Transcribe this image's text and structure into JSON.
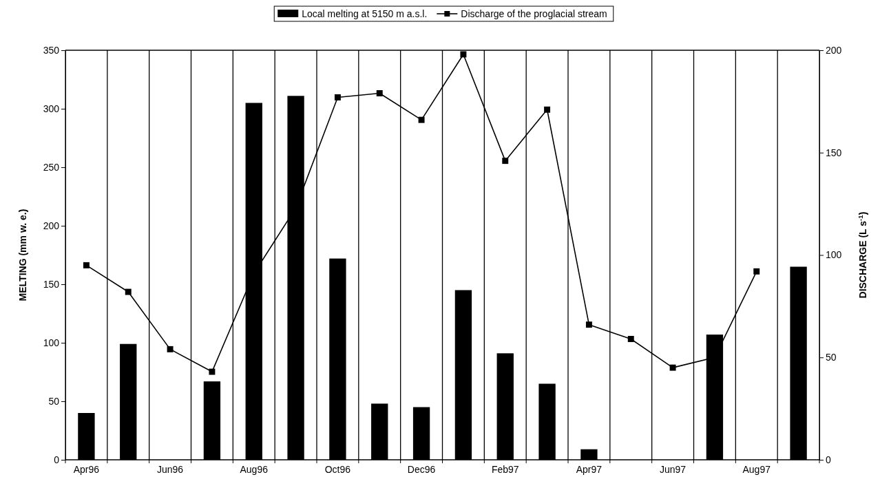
{
  "chart_data": {
    "type": "bar",
    "ylabel": "MELTING (mm w. e.)",
    "y2label": "DISCHARGE (L s$^{-1}$)",
    "categories": [
      "Apr96",
      null,
      "Jun96",
      null,
      "Aug96",
      null,
      "Oct96",
      null,
      "Dec96",
      null,
      "Feb97",
      null,
      "Apr97",
      null,
      "Jun97",
      null,
      "Aug97",
      null
    ],
    "series": [
      {
        "name": "Discharge of the proglacial stream",
        "type": "line",
        "axis": "y2",
        "color": "#000000",
        "marker": "square",
        "values": [
          95,
          82,
          54,
          43,
          91,
          123,
          177,
          179,
          166,
          198,
          146,
          171,
          66,
          59,
          45,
          50,
          92,
          null
        ]
      },
      {
        "name": "Local melting at 5150 m a.s.l.",
        "color": "#000000",
        "values": [
          40,
          99,
          0,
          67,
          305,
          311,
          172,
          48,
          45,
          145,
          91,
          65,
          9,
          0,
          0,
          107,
          0,
          165
        ]
      }
    ],
    "ylim": [
      0,
      350
    ],
    "yticks": [
      0,
      50,
      100,
      150,
      200,
      250,
      300,
      350
    ],
    "y2lim": [
      0,
      200
    ],
    "y2ticks": [
      0,
      50,
      100,
      150,
      200
    ],
    "grid": "x",
    "legend": "top"
  }
}
